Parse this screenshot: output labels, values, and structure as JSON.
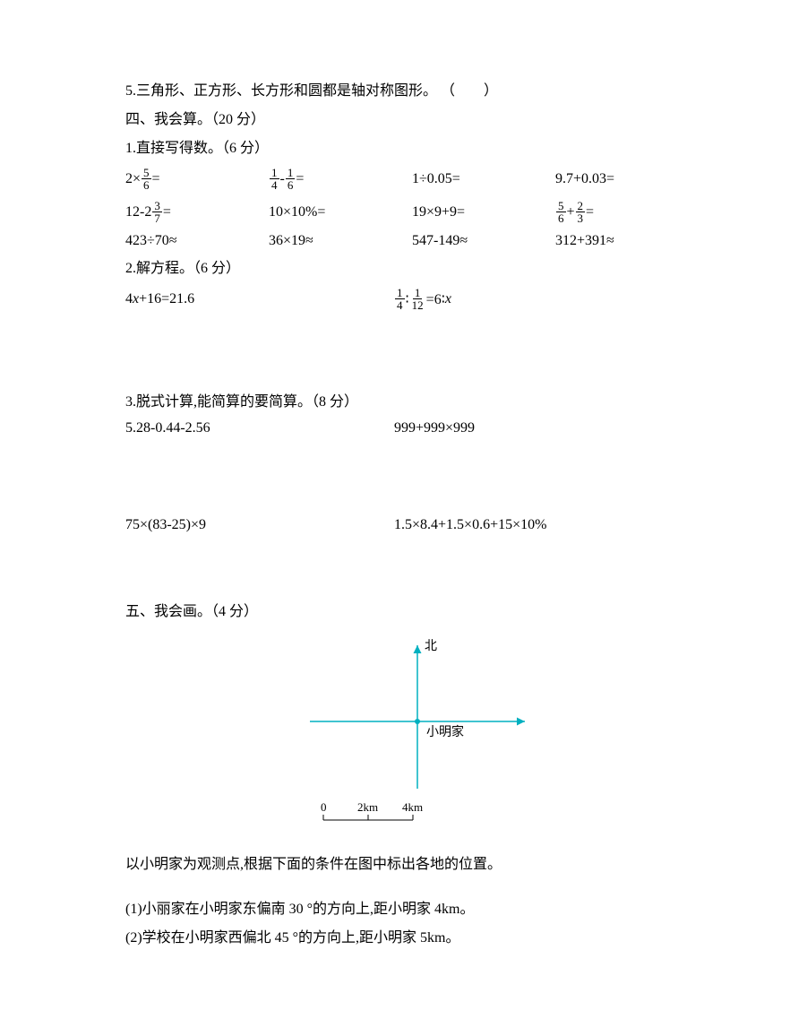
{
  "q5": "5.三角形、正方形、长方形和圆都是轴对称图形。 （　　）",
  "section4_title": "四、我会算。（20 分）",
  "s4_q1_title": "1.直接写得数。（6 分）",
  "s4_q1_r1": {
    "c1_before": "2×",
    "c1_frac_n": "5",
    "c1_frac_d": "6",
    "c1_after": "=",
    "c2_f1n": "1",
    "c2_f1d": "4",
    "c2_f2n": "1",
    "c2_f2d": "6",
    "c2_after": "=",
    "c3": "1÷0.05=",
    "c4": "9.7+0.03="
  },
  "s4_q1_r2": {
    "c1_before": "12-2",
    "c1_frac_n": "3",
    "c1_frac_d": "7",
    "c1_after": "=",
    "c2": "10×10%=",
    "c3": "19×9+9=",
    "c4_f1n": "5",
    "c4_f1d": "6",
    "c4_mid": "+",
    "c4_f2n": "2",
    "c4_f2d": "3",
    "c4_after": "="
  },
  "s4_q1_r3": {
    "c1": "423÷70≈",
    "c2": "36×19≈",
    "c3": "547-149≈",
    "c4": "312+391≈"
  },
  "s4_q2_title": "2.解方程。（6 分）",
  "s4_q2_r1": {
    "c1_before": "4",
    "c1_x": "x",
    "c1_after": "+16=21.6",
    "c2_f1n": "1",
    "c2_f1d": "4",
    "c2_mid1": "∶",
    "c2_f2n": "1",
    "c2_f2d": "12",
    "c2_mid2": "=6∶",
    "c2_x": "x"
  },
  "s4_q3_title": "3.脱式计算,能简算的要简算。（8 分）",
  "s4_q3_r1": {
    "c1": "5.28-0.44-2.56",
    "c2": "999+999×999"
  },
  "s4_q3_r2": {
    "c1": "75×(83-25)×9",
    "c2": "1.5×8.4+1.5×0.6+15×10%"
  },
  "section5_title": "五、我会画。（4 分）",
  "diagram": {
    "north_label": "北",
    "center_label": "小明家",
    "scale_labels": [
      "0",
      "2km",
      "4km"
    ],
    "axis_color": "#00b0c0",
    "text_color": "#000000",
    "bg": "#ffffff",
    "scale_color": "#000000"
  },
  "s5_intro": "以小明家为观测点,根据下面的条件在图中标出各地的位置。",
  "s5_item1": "(1)小丽家在小明家东偏南 30 °的方向上,距小明家 4km。",
  "s5_item2": "(2)学校在小明家西偏北 45 °的方向上,距小明家 5km。"
}
